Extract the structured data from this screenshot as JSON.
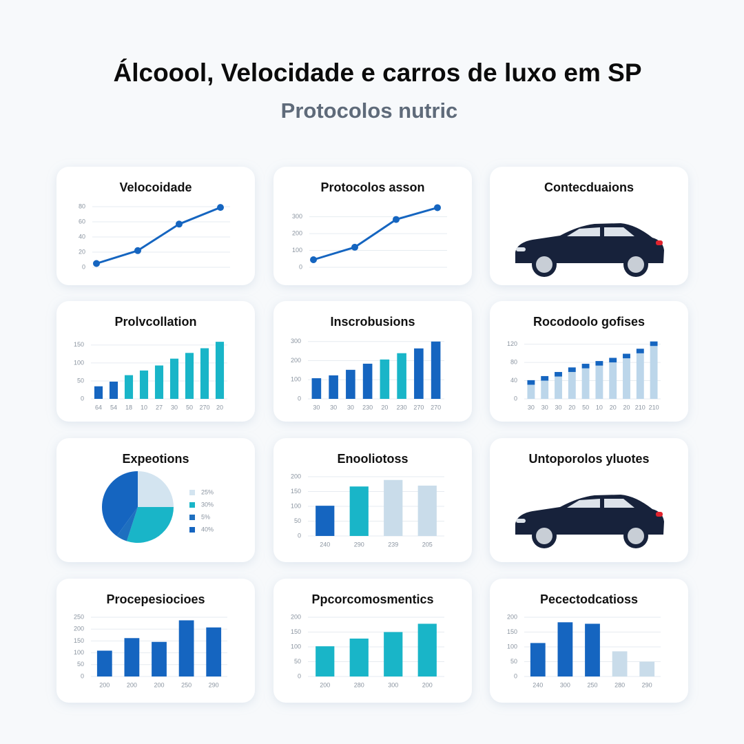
{
  "title": "Álcoool, Velocidade e carros de luxo em SP",
  "subtitle": "Protocolos nutric",
  "chart_data": [
    {
      "type": "line",
      "title": "Velocoidade",
      "values": [
        5,
        22,
        57,
        79
      ],
      "color": "#1565c0",
      "ylim": [
        0,
        80
      ],
      "yticks": [
        0,
        20,
        40,
        60,
        80
      ],
      "grid": true
    },
    {
      "type": "line",
      "title": "Protocolos asson",
      "values": [
        45,
        119,
        284,
        354
      ],
      "color": "#1565c0",
      "ylim": [
        0,
        360
      ],
      "yticks": [
        0,
        100,
        200,
        300
      ],
      "grid": true
    },
    {
      "type": "car",
      "title": "Contecduaions"
    },
    {
      "type": "bar",
      "title": "Prolvcollation",
      "categories": [
        "64",
        "54",
        "18",
        "10",
        "27",
        "30",
        "50",
        "270",
        "20"
      ],
      "values": [
        35,
        48,
        66,
        79,
        93,
        112,
        128,
        141,
        159
      ],
      "colors": [
        "#1565c0",
        "#1565c0",
        "#19b5c8",
        "#19b5c8",
        "#19b5c8",
        "#19b5c8",
        "#19b5c8",
        "#19b5c8",
        "#19b5c8"
      ],
      "ylim": [
        0,
        165
      ],
      "yticks": [
        0,
        50,
        100,
        150
      ],
      "grid": true
    },
    {
      "type": "bar",
      "title": "Inscrobusions",
      "categories": [
        "30",
        "30",
        "30",
        "230",
        "20",
        "230",
        "270",
        "270"
      ],
      "values": [
        108,
        123,
        152,
        184,
        206,
        239,
        264,
        300
      ],
      "colors": [
        "#1565c0",
        "#1565c0",
        "#1565c0",
        "#1565c0",
        "#19b5c8",
        "#19b5c8",
        "#1565c0",
        "#1565c0"
      ],
      "ylim": [
        0,
        310
      ],
      "yticks": [
        0,
        100,
        200,
        300
      ],
      "grid": true
    },
    {
      "type": "bar",
      "title": "Rocodoolo gofises",
      "categories": [
        "30",
        "30",
        "30",
        "20",
        "50",
        "10",
        "20",
        "20",
        "210",
        "210"
      ],
      "series": [
        {
          "color": "#bcd6ea",
          "values": [
            31,
            40,
            49,
            59,
            67,
            73,
            80,
            89,
            100,
            116
          ]
        },
        {
          "color": "#1565c0",
          "values": [
            10,
            10,
            10,
            10,
            10,
            10,
            10,
            10,
            10,
            10
          ]
        }
      ],
      "ylim": [
        0,
        130
      ],
      "yticks": [
        0,
        40,
        80,
        120
      ],
      "grid": true
    },
    {
      "type": "pie",
      "title": "Expeotions",
      "values": [
        25,
        30,
        5,
        40
      ],
      "value_labels": [
        "25%",
        "30%",
        "5%",
        "40%"
      ],
      "colors": [
        "#d3e4f0",
        "#19b5c8",
        "#1e6fbf",
        "#1565c0"
      ]
    },
    {
      "type": "bar",
      "title": "Enooliotoss",
      "categories": [
        "240",
        "290",
        "239",
        "205"
      ],
      "values": [
        102,
        167,
        189,
        170
      ],
      "colors": [
        "#1565c0",
        "#19b5c8",
        "#c9dcea",
        "#c9dcea"
      ],
      "ylim": [
        0,
        200
      ],
      "yticks": [
        0,
        50,
        100,
        150,
        200
      ],
      "grid": true
    },
    {
      "type": "car",
      "title": "Untoporolos yluotes"
    },
    {
      "type": "bar",
      "title": "Procepesiocioes",
      "categories": [
        "200",
        "200",
        "200",
        "250",
        "290"
      ],
      "values": [
        109,
        162,
        146,
        237,
        207
      ],
      "colors": [
        "#1565c0",
        "#1565c0",
        "#1565c0",
        "#1565c0",
        "#1565c0"
      ],
      "ylim": [
        0,
        250
      ],
      "yticks": [
        0,
        50,
        100,
        150,
        200,
        250
      ],
      "grid": true
    },
    {
      "type": "bar",
      "title": "Ppcorcomosmentics",
      "categories": [
        "200",
        "280",
        "300",
        "200"
      ],
      "values": [
        102,
        128,
        150,
        178
      ],
      "colors": [
        "#19b5c8",
        "#19b5c8",
        "#19b5c8",
        "#19b5c8"
      ],
      "ylim": [
        0,
        200
      ],
      "yticks": [
        0,
        50,
        100,
        150,
        200
      ],
      "grid": true
    },
    {
      "type": "bar",
      "title": "Pecectodcatioss",
      "categories": [
        "240",
        "300",
        "250",
        "280",
        "290"
      ],
      "values": [
        113,
        183,
        178,
        85,
        50
      ],
      "colors": [
        "#1565c0",
        "#1565c0",
        "#1565c0",
        "#c9dcea",
        "#c9dcea"
      ],
      "ylim": [
        0,
        200
      ],
      "yticks": [
        0,
        50,
        100,
        150,
        200
      ],
      "grid": true
    }
  ]
}
